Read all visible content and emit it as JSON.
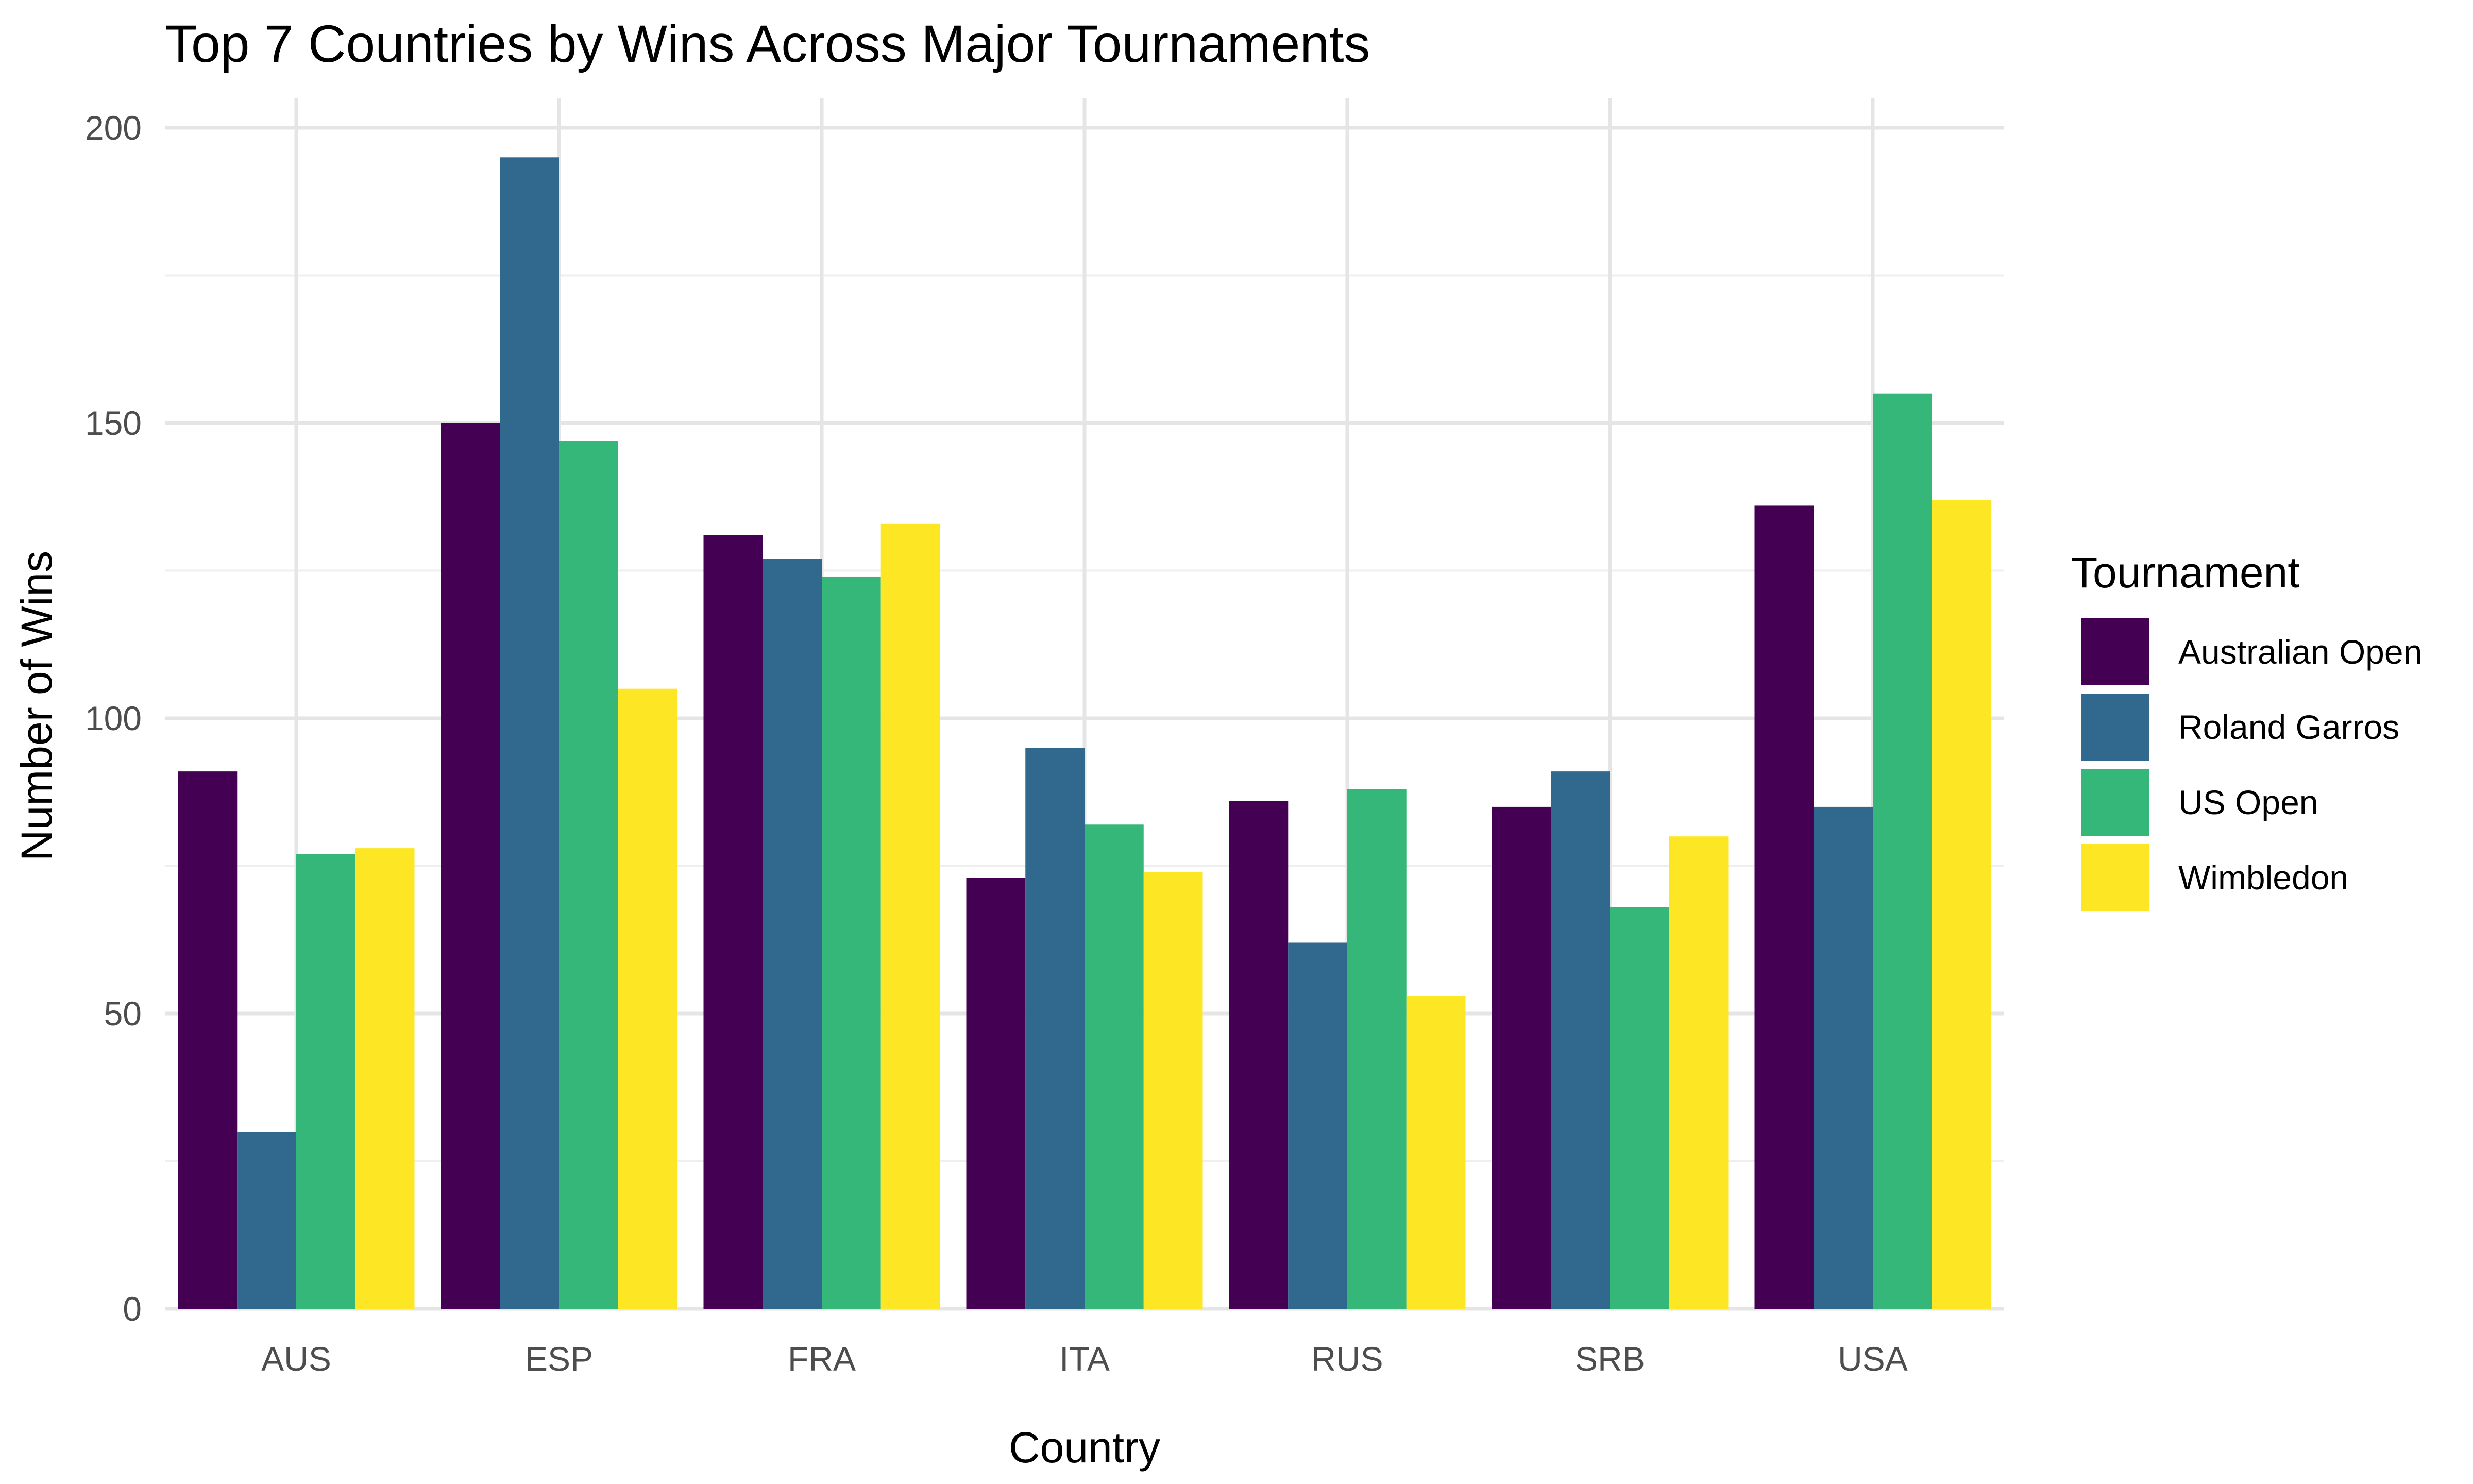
{
  "chart_data": {
    "type": "bar",
    "title": "Top 7 Countries by Wins Across Major Tournaments",
    "xlabel": "Country",
    "ylabel": "Number of Wins",
    "ylim": [
      0,
      205
    ],
    "yticks": [
      0,
      50,
      100,
      150,
      200
    ],
    "grid": true,
    "legend": {
      "title": "Tournament",
      "placement": "right"
    },
    "categories": [
      "AUS",
      "ESP",
      "FRA",
      "ITA",
      "RUS",
      "SRB",
      "USA"
    ],
    "series": [
      {
        "name": "Australian Open",
        "color": "#440154",
        "values": [
          91,
          150,
          131,
          73,
          86,
          85,
          136
        ]
      },
      {
        "name": "Roland Garros",
        "color": "#31688e",
        "values": [
          30,
          195,
          127,
          95,
          62,
          91,
          85
        ]
      },
      {
        "name": "US Open",
        "color": "#35b779",
        "values": [
          77,
          147,
          124,
          82,
          88,
          68,
          155
        ]
      },
      {
        "name": "Wimbledon",
        "color": "#fde725",
        "values": [
          78,
          105,
          133,
          74,
          53,
          80,
          137
        ]
      }
    ]
  }
}
